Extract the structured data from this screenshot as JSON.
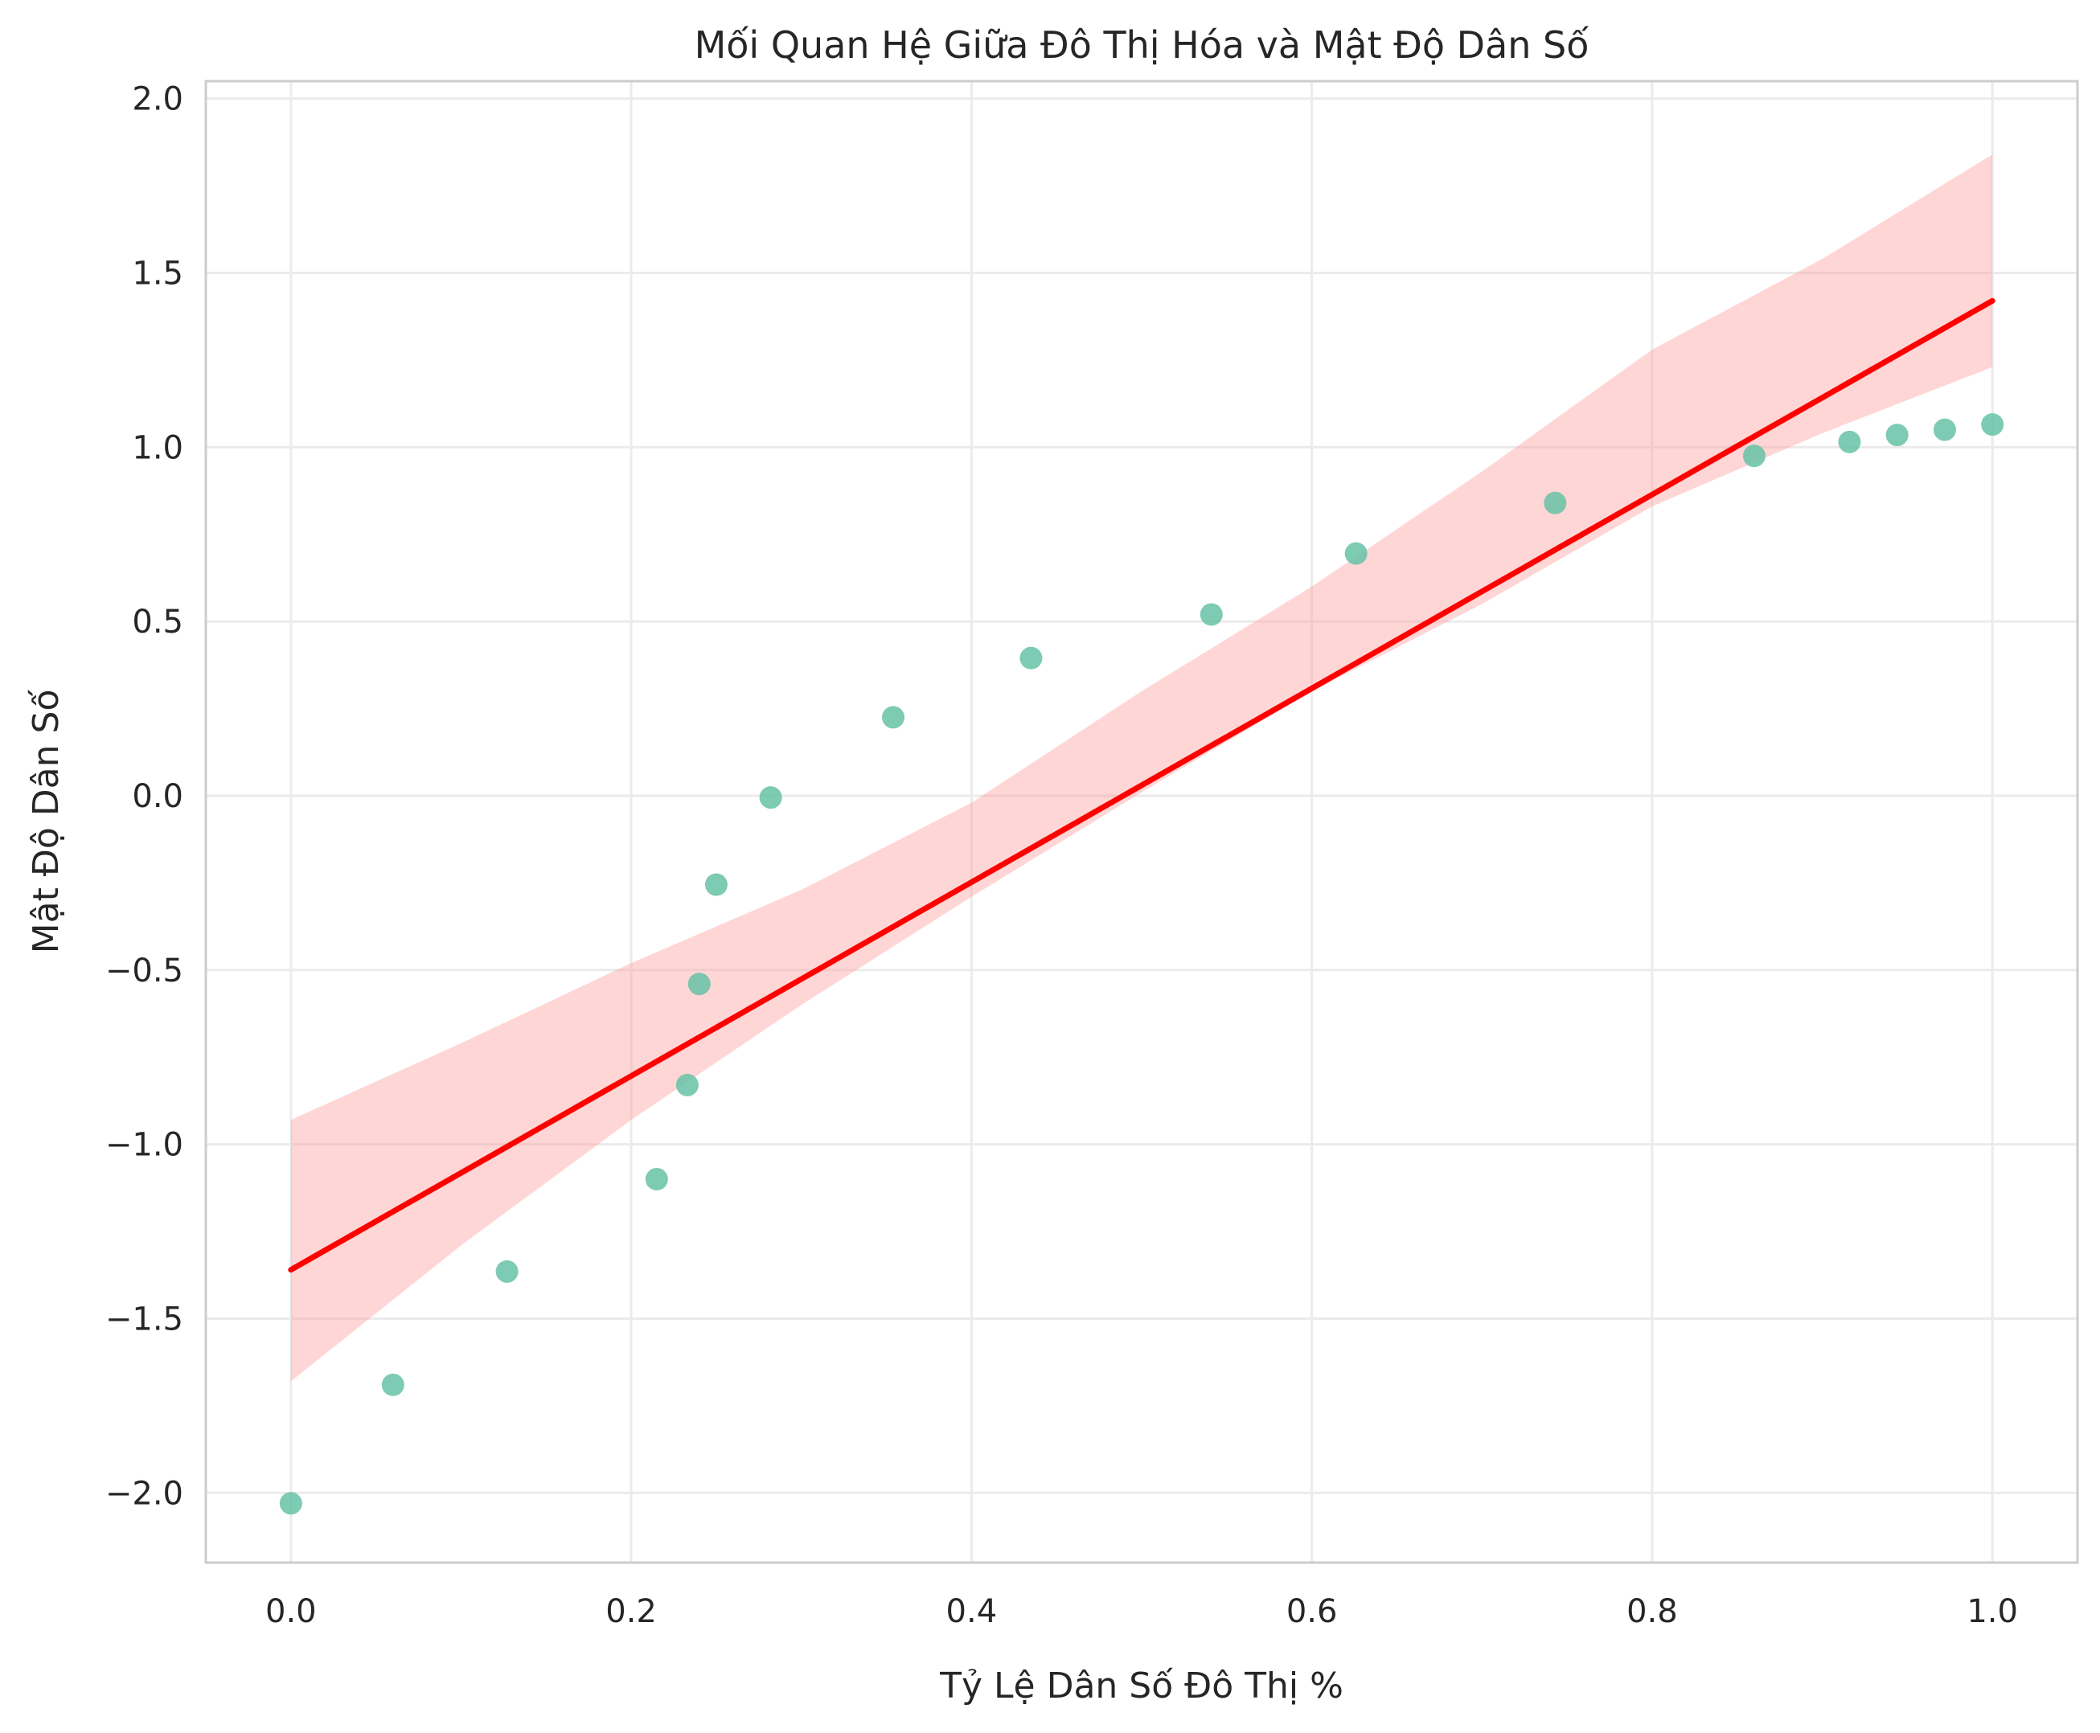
{
  "chart_data": {
    "type": "scatter",
    "title": "Mối Quan Hệ Giữa Đô Thị Hóa và Mật Độ Dân Số",
    "xlabel": "Tỷ Lệ Dân Số Đô Thị %",
    "ylabel": "Mật Độ Dân Số",
    "xlim": [
      -0.05,
      1.05
    ],
    "ylim": [
      -2.2,
      2.05
    ],
    "x_ticks": [
      0.0,
      0.2,
      0.4,
      0.6,
      0.8,
      1.0
    ],
    "x_tick_labels": [
      "0.0",
      "0.2",
      "0.4",
      "0.6",
      "0.8",
      "1.0"
    ],
    "y_ticks": [
      2.0,
      1.5,
      1.0,
      0.5,
      0.0,
      -0.5,
      -1.0,
      -1.5,
      -2.0
    ],
    "y_tick_labels": [
      "2.0",
      "1.5",
      "1.0",
      "0.5",
      "0.0",
      "−0.5",
      "−1.0",
      "−1.5",
      "−2.0"
    ],
    "grid": true,
    "points": {
      "color": "#66c2a5",
      "x": [
        0.0,
        0.06,
        0.127,
        0.215,
        0.233,
        0.24,
        0.25,
        0.282,
        0.354,
        0.435,
        0.541,
        0.626,
        0.743,
        0.86,
        0.916,
        0.944,
        0.972,
        1.0
      ],
      "y": [
        -2.03,
        -1.69,
        -1.365,
        -1.1,
        -0.83,
        -0.54,
        -0.255,
        -0.005,
        0.225,
        0.395,
        0.52,
        0.695,
        0.84,
        0.975,
        1.015,
        1.035,
        1.05,
        1.065
      ]
    },
    "regression": {
      "color": "#ff0000",
      "x": [
        0.0,
        1.0
      ],
      "y": [
        -1.36,
        1.42
      ]
    },
    "confidence_band": {
      "color": "#ff9999",
      "x": [
        0.0,
        0.1,
        0.2,
        0.3,
        0.4,
        0.5,
        0.6,
        0.7,
        0.8,
        0.9,
        1.0
      ],
      "upper": [
        -0.93,
        -0.71,
        -0.48,
        -0.27,
        -0.02,
        0.3,
        0.6,
        0.93,
        1.28,
        1.54,
        1.84
      ],
      "lower": [
        -1.68,
        -1.29,
        -0.93,
        -0.6,
        -0.29,
        0.01,
        0.3,
        0.55,
        0.83,
        1.04,
        1.23
      ]
    }
  }
}
